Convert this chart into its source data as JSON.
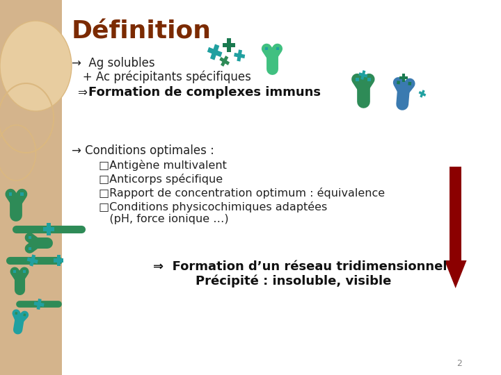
{
  "background_color": "#ffffff",
  "left_panel_color": "#d4b48c",
  "title": "Définition",
  "title_color": "#7B2A00",
  "title_fontsize": 26,
  "line1": "→  Ag solubles",
  "line2": "   + Ac précipitants spécifiques",
  "line3_arrow": "⇒ ",
  "line3_bold": "Formation de complexes immuns",
  "line4": "→ Conditions optimales :",
  "bullet1": "□Antigène multivalent",
  "bullet2": "□Anticorps spécifique",
  "bullet3": "□Rapport de concentration optimum : équivalence",
  "bullet4": "□Conditions physicochimiques adaptées",
  "bullet4b": "   (pH, force ionique …)",
  "conclusion1": "⇒  Formation d’un réseau tridimensionnel",
  "conclusion2": "Précipité : insoluble, visible",
  "text_color": "#222222",
  "bold_color": "#111111",
  "teal_dark": "#1a7a50",
  "teal_mid": "#2e8b57",
  "teal_light": "#40c080",
  "blue_teal": "#20a0a0",
  "steel_blue": "#3a7ab0",
  "red_arrow_color": "#8b0000",
  "page_num": "2",
  "body_fontsize": 12,
  "bullet_fontsize": 11.5,
  "conclusion_fontsize": 13
}
